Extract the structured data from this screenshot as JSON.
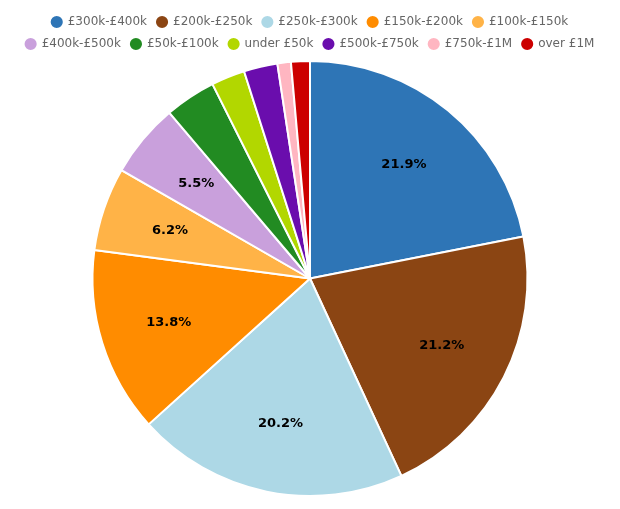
{
  "chart_data": {
    "type": "pie",
    "categories": [
      "£300k-£400k",
      "£200k-£250k",
      "£250k-£300k",
      "£150k-£200k",
      "£100k-£150k",
      "£400k-£500k",
      "£50k-£100k",
      "under £50k",
      "£500k-£750k",
      "£750k-£1M",
      "over £1M"
    ],
    "values": [
      21.9,
      21.2,
      20.2,
      13.8,
      6.2,
      5.5,
      3.8,
      2.5,
      2.5,
      1.0,
      1.4
    ],
    "value_labels": [
      "21.9%",
      "21.2%",
      "20.2%",
      "13.8%",
      "6.2%",
      "5.5%",
      null,
      null,
      null,
      null,
      null
    ],
    "colors": [
      "#2e75b6",
      "#8b4513",
      "#add8e6",
      "#ff8c00",
      "#ffb347",
      "#c9a0dc",
      "#228b22",
      "#b2d700",
      "#6a0dad",
      "#ffb6c1",
      "#cc0000"
    ],
    "data_labels": true,
    "legend": "top"
  }
}
